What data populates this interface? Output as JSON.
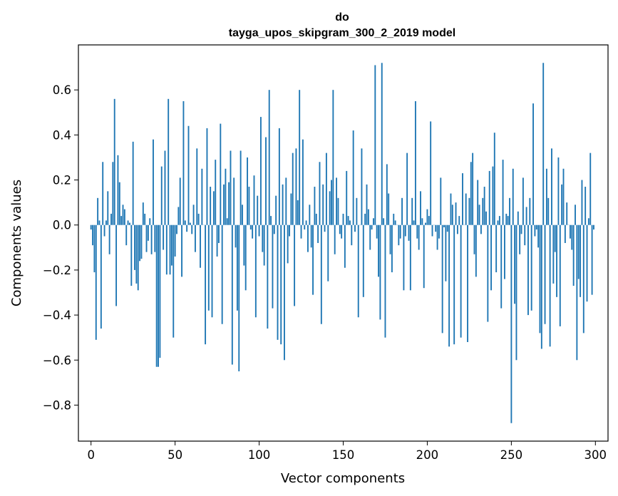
{
  "chart_data": {
    "type": "bar",
    "title_line1": "do",
    "title_line2": "tayga_upos_skipgram_300_2_2019 model",
    "xlabel": "Vector components",
    "ylabel": "Components values",
    "xlim": [
      -7.5,
      307.5
    ],
    "ylim": [
      -0.96,
      0.8
    ],
    "x_ticks": [
      0,
      50,
      100,
      150,
      200,
      250,
      300
    ],
    "y_ticks": [
      -0.8,
      -0.6,
      -0.4,
      -0.2,
      0.0,
      0.2,
      0.4,
      0.6
    ],
    "y_tick_labels": [
      "−0.8",
      "−0.6",
      "−0.4",
      "−0.2",
      "0.0",
      "0.2",
      "0.4",
      "0.6"
    ],
    "bar_color": "#1f77b4",
    "values": [
      -0.02,
      -0.09,
      -0.21,
      -0.51,
      0.12,
      0.02,
      -0.46,
      0.28,
      -0.05,
      0.02,
      0.15,
      -0.13,
      0.05,
      0.28,
      0.56,
      -0.36,
      0.31,
      0.19,
      0.04,
      0.09,
      0.07,
      -0.09,
      0.02,
      0.01,
      -0.27,
      0.37,
      -0.2,
      -0.26,
      -0.29,
      -0.16,
      -0.15,
      0.1,
      0.05,
      -0.12,
      -0.07,
      0.03,
      -0.13,
      0.38,
      -0.12,
      -0.63,
      -0.63,
      -0.59,
      0.26,
      -0.11,
      0.33,
      -0.22,
      0.56,
      -0.22,
      -0.18,
      -0.5,
      -0.14,
      -0.04,
      0.08,
      0.21,
      -0.23,
      0.55,
      0.02,
      -0.03,
      0.44,
      0.01,
      -0.04,
      0.09,
      -0.12,
      0.34,
      0.05,
      -0.19,
      0.25,
      0.0,
      -0.53,
      0.43,
      -0.38,
      0.17,
      -0.41,
      0.15,
      0.29,
      -0.14,
      -0.08,
      0.45,
      -0.44,
      0.18,
      0.25,
      0.03,
      0.19,
      0.33,
      -0.62,
      0.21,
      -0.1,
      -0.38,
      -0.65,
      0.33,
      0.09,
      -0.18,
      -0.29,
      0.3,
      0.17,
      -0.02,
      -0.06,
      0.22,
      -0.41,
      0.13,
      -0.05,
      0.48,
      -0.12,
      -0.18,
      0.39,
      -0.46,
      0.6,
      0.04,
      -0.37,
      -0.04,
      0.13,
      -0.51,
      0.43,
      -0.53,
      0.18,
      -0.6,
      0.21,
      -0.17,
      -0.05,
      0.14,
      0.32,
      -0.36,
      0.34,
      0.11,
      0.6,
      -0.06,
      0.38,
      -0.02,
      0.02,
      -0.12,
      0.09,
      -0.1,
      -0.31,
      0.17,
      0.05,
      -0.08,
      0.28,
      -0.44,
      0.18,
      -0.03,
      0.32,
      -0.25,
      0.15,
      0.2,
      0.6,
      -0.13,
      0.21,
      0.12,
      -0.04,
      -0.06,
      0.05,
      -0.19,
      0.24,
      0.04,
      0.02,
      -0.09,
      0.42,
      -0.03,
      0.12,
      -0.41,
      0.0,
      0.34,
      -0.32,
      0.05,
      0.18,
      0.07,
      -0.11,
      -0.02,
      0.03,
      0.71,
      -0.06,
      -0.23,
      -0.42,
      0.72,
      0.03,
      -0.5,
      0.27,
      0.14,
      -0.13,
      -0.21,
      0.05,
      0.02,
      0.0,
      -0.09,
      -0.06,
      0.12,
      -0.29,
      -0.05,
      0.32,
      -0.07,
      -0.29,
      0.12,
      0.02,
      0.55,
      -0.06,
      -0.11,
      0.15,
      0.03,
      -0.28,
      0.01,
      0.07,
      0.04,
      0.46,
      -0.05,
      0.0,
      -0.03,
      -0.11,
      -0.06,
      0.21,
      -0.48,
      -0.01,
      -0.25,
      -0.03,
      -0.54,
      0.14,
      0.09,
      -0.53,
      0.1,
      -0.04,
      0.04,
      -0.5,
      0.23,
      0.0,
      0.14,
      -0.52,
      0.12,
      0.28,
      0.32,
      -0.13,
      -0.23,
      0.2,
      0.09,
      -0.04,
      0.12,
      0.17,
      0.06,
      -0.43,
      0.24,
      -0.29,
      0.26,
      0.41,
      -0.21,
      0.02,
      0.04,
      -0.37,
      0.29,
      -0.24,
      0.05,
      0.04,
      0.12,
      -0.88,
      0.25,
      -0.35,
      -0.6,
      0.06,
      -0.13,
      -0.04,
      0.21,
      -0.09,
      0.08,
      -0.4,
      0.12,
      -0.38,
      0.54,
      -0.05,
      -0.02,
      -0.1,
      -0.48,
      -0.55,
      0.72,
      -0.44,
      0.25,
      0.12,
      -0.54,
      0.34,
      -0.26,
      -0.12,
      -0.32,
      0.3,
      -0.45,
      0.18,
      0.25,
      -0.08,
      0.1,
      0.0,
      -0.06,
      -0.11,
      -0.27,
      0.09,
      -0.6,
      -0.24,
      -0.32,
      0.2,
      -0.48,
      0.17,
      -0.34,
      0.03,
      0.32,
      -0.31,
      -0.02
    ]
  }
}
